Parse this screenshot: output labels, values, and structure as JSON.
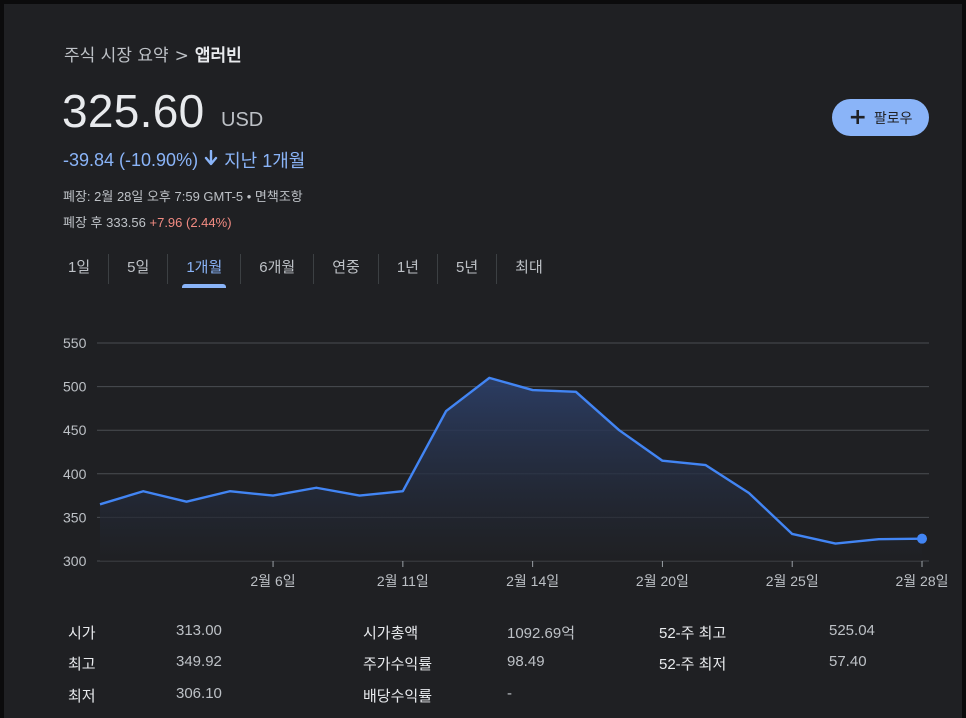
{
  "breadcrumb": {
    "parent": "주식 시장 요약",
    "separator": ">",
    "current": "앱러빈"
  },
  "quote": {
    "price": "325.60",
    "currency": "USD",
    "change": "-39.84 (-10.90%)",
    "change_arrow": "🡣",
    "period": "지난 1개월",
    "close_info": "폐장: 2월 28일 오후 7:59 GMT-5 • 면책조항",
    "after_label": "폐장 후 333.56",
    "after_change": "+7.96 (2.44%)"
  },
  "follow_button": {
    "icon": "plus-icon",
    "label": "팔로우"
  },
  "tabs": [
    {
      "label": "1일"
    },
    {
      "label": "5일"
    },
    {
      "label": "1개월",
      "active": true
    },
    {
      "label": "6개월"
    },
    {
      "label": "연중"
    },
    {
      "label": "1년"
    },
    {
      "label": "5년"
    },
    {
      "label": "최대"
    }
  ],
  "chart_data": {
    "type": "area",
    "title": "",
    "xlabel": "",
    "ylabel": "",
    "ylim": [
      300,
      550
    ],
    "y_ticks": [
      300,
      350,
      400,
      450,
      500,
      550
    ],
    "x_tick_labels": [
      "2월 6일",
      "2월 11일",
      "2월 14일",
      "2월 20일",
      "2월 25일",
      "2월 28일"
    ],
    "grid": true,
    "line_color": "#4285f4",
    "series": [
      {
        "x": [
          "1월 31일",
          "2월 3일",
          "2월 4일",
          "2월 5일",
          "2월 6일",
          "2월 7일",
          "2월 10일",
          "2월 11일",
          "2월 12일",
          "2월 13일",
          "2월 14일",
          "2월 18일",
          "2월 19일",
          "2월 20일",
          "2월 21일",
          "2월 24일",
          "2월 25일",
          "2월 26일",
          "2월 27일",
          "2월 28일"
        ],
        "values": [
          365,
          380,
          368,
          380,
          375,
          384,
          375,
          380,
          472,
          510,
          496,
          494,
          450,
          415,
          410,
          378,
          331,
          320,
          325,
          325.6
        ]
      }
    ]
  },
  "stats": {
    "col1": [
      {
        "label": "시가",
        "value": "313.00"
      },
      {
        "label": "최고",
        "value": "349.92"
      },
      {
        "label": "최저",
        "value": "306.10"
      }
    ],
    "col2": [
      {
        "label": "시가총액",
        "value": "1092.69억"
      },
      {
        "label": "주가수익률",
        "value": "98.49"
      },
      {
        "label": "배당수익률",
        "value": "-"
      }
    ],
    "col3": [
      {
        "label": "52-주 최고",
        "value": "525.04"
      },
      {
        "label": "52-주 최저",
        "value": "57.40"
      }
    ]
  }
}
